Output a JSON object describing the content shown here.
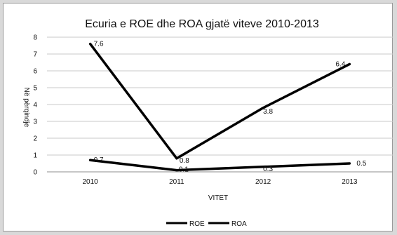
{
  "chart_data": {
    "type": "line",
    "title": "Ecuria e ROE  dhe ROA gjatë viteve 2010-2013",
    "xlabel": "VITET",
    "ylabel": "Në përqindje",
    "categories": [
      "2010",
      "2011",
      "2012",
      "2013"
    ],
    "ylim": [
      0,
      8
    ],
    "yticks": [
      "0",
      "1",
      "2",
      "3",
      "4",
      "5",
      "6",
      "7",
      "8"
    ],
    "grid": true,
    "legend_position": "bottom",
    "series": [
      {
        "name": "ROE",
        "values": [
          7.6,
          0.8,
          3.8,
          6.4
        ],
        "labels": [
          "7.6",
          "0.8",
          "3.8",
          "6.4"
        ],
        "color": "#000000"
      },
      {
        "name": "ROA",
        "values": [
          0.7,
          0.1,
          0.3,
          0.5
        ],
        "labels": [
          "0.7",
          "0.1",
          "0.3",
          "0.5"
        ],
        "color": "#000000"
      }
    ]
  }
}
